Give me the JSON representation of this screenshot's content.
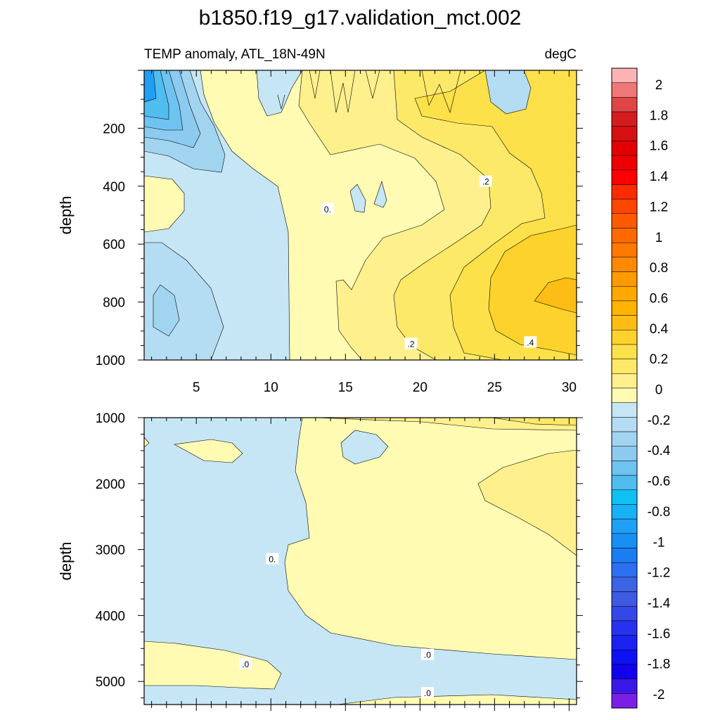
{
  "chart_data": [
    {
      "type": "contour",
      "panel": "upper",
      "title": "b1850.f19_g17.validation_mct.002",
      "subtitle_left": "TEMP anomaly, ATL_18N-49N",
      "subtitle_right": "degC",
      "xlabel": "",
      "ylabel": "depth",
      "xlim": [
        1.5,
        30.5
      ],
      "ylim": [
        1000,
        0
      ],
      "xticks": [
        "5",
        "10",
        "15",
        "20",
        "25",
        "30"
      ],
      "yticks": [
        "200",
        "400",
        "600",
        "800",
        "1000"
      ],
      "contour_labels": [
        {
          "text": "0.",
          "x": 13.8,
          "y": 480
        },
        {
          "text": ".2",
          "x": 24.4,
          "y": 385
        },
        {
          "text": ".2",
          "x": 19.4,
          "y": 945
        },
        {
          "text": ".4",
          "x": 27.4,
          "y": 940
        }
      ]
    },
    {
      "type": "contour",
      "panel": "lower",
      "xlabel": "",
      "ylabel": "depth",
      "xlim": [
        1.5,
        30.5
      ],
      "ylim": [
        5350,
        1000
      ],
      "yticks": [
        "1000",
        "2000",
        "3000",
        "4000",
        "5000"
      ],
      "contour_labels": [
        {
          "text": "0.",
          "x": 10.1,
          "y": 3150
        },
        {
          "text": ".0",
          "x": 8.3,
          "y": 4740
        },
        {
          "text": ".0",
          "x": 20.5,
          "y": 4600
        },
        {
          "text": ".0",
          "x": 20.5,
          "y": 5180
        }
      ]
    }
  ],
  "colorbar": {
    "labels": [
      "2",
      "1.8",
      "1.6",
      "1.4",
      "1.2",
      "1",
      "0.8",
      "0.6",
      "0.4",
      "0.2",
      "0",
      "-0.2",
      "-0.4",
      "-0.6",
      "-0.8",
      "-1",
      "-1.2",
      "-1.4",
      "-1.6",
      "-1.8",
      "-2"
    ],
    "colors": [
      "#fbb3b3",
      "#f07777",
      "#e04545",
      "#d41c1c",
      "#d41010",
      "#e20000",
      "#ee0000",
      "#ff0000",
      "#ff2b00",
      "#ff4600",
      "#ff5a00",
      "#ff6a00",
      "#ff7800",
      "#ff8a00",
      "#ff9a00",
      "#ffa800",
      "#ffb400",
      "#fcbd15",
      "#fdd22c",
      "#fde14a",
      "#fde968",
      "#fef08d",
      "#fffbb3",
      "#c6e6f5",
      "#b4dcf2",
      "#a1d4ef",
      "#8ccaf0",
      "#6fc3f0",
      "#50bdef",
      "#0dc2f3",
      "#16b2f5",
      "#1fa0f5",
      "#178ff4",
      "#1a7ef2",
      "#2d6fef",
      "#3a63e6",
      "#3d5ae0",
      "#3448e8",
      "#2832ee",
      "#1a22f0",
      "#0d12f2",
      "#1200f0",
      "#3a18e8",
      "#7a20e6"
    ]
  }
}
